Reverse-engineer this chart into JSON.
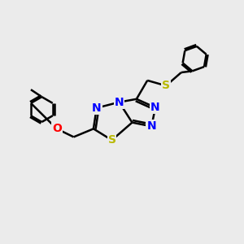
{
  "background_color": "#ebebeb",
  "fig_size": [
    3.0,
    3.0
  ],
  "dpi": 100,
  "atom_colors": {
    "N": "#0000ff",
    "S": "#b8b800",
    "O": "#ff0000",
    "C": "#000000"
  },
  "bond_color": "#000000",
  "bond_lw": 1.8
}
